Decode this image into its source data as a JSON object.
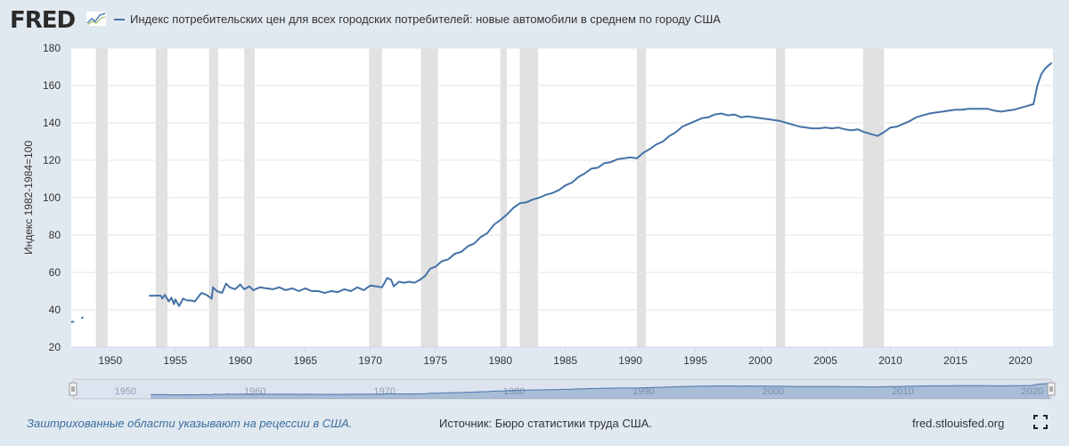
{
  "header": {
    "logo_text": "FRED",
    "legend_label": "Индекс потребительских цен для всех городских потребителей: новые автомобили в среднем по городу США",
    "line_color": "#4572a7"
  },
  "footer": {
    "recession_note": "Заштрихованные области указывают на рецессии в США.",
    "source": "Источник: Бюро статистики труда США.",
    "url": "fred.stlouisfed.org"
  },
  "navigator": {
    "tick_labels": [
      "1950",
      "1960",
      "1970",
      "1980",
      "1990",
      "2000",
      "2010",
      "2020"
    ]
  },
  "chart_data": {
    "type": "line",
    "title": "",
    "xlabel": "",
    "ylabel": "Индекс 1982-1984=100",
    "xlim": [
      1947.0,
      2022.5
    ],
    "ylim": [
      20,
      180
    ],
    "y_ticks": [
      20,
      40,
      60,
      80,
      100,
      120,
      140,
      160,
      180
    ],
    "x_ticks": [
      1950,
      1955,
      1960,
      1965,
      1970,
      1975,
      1980,
      1985,
      1990,
      1995,
      2000,
      2005,
      2010,
      2015,
      2020
    ],
    "grid": true,
    "recessions": [
      [
        1948.9,
        1949.8
      ],
      [
        1953.5,
        1954.4
      ],
      [
        1957.6,
        1958.3
      ],
      [
        1960.3,
        1961.1
      ],
      [
        1969.9,
        1970.9
      ],
      [
        1973.9,
        1975.2
      ],
      [
        1980.0,
        1980.5
      ],
      [
        1981.5,
        1982.9
      ],
      [
        1990.5,
        1991.2
      ],
      [
        2001.2,
        2001.9
      ],
      [
        2007.9,
        2009.5
      ]
    ],
    "series": [
      {
        "x": [
          1947.0,
          1947.2
        ],
        "y": [
          33.5,
          33.6
        ]
      },
      {
        "x": [
          1947.8,
          1947.9
        ],
        "y": [
          35.5,
          36.0
        ]
      },
      {
        "x": [
          1953.0,
          1953.3,
          1953.6,
          1953.9,
          1954.0,
          1954.2,
          1954.5,
          1954.7,
          1954.9,
          1955.0,
          1955.3,
          1955.6,
          1955.9,
          1956.2,
          1956.5,
          1957.0,
          1957.4,
          1957.8,
          1957.9,
          1958.2,
          1958.6,
          1958.9,
          1959.2,
          1959.6,
          1960.0,
          1960.3,
          1960.7,
          1961.0,
          1961.5,
          1962.0,
          1962.5,
          1963.0,
          1963.5,
          1964.0,
          1964.5,
          1965.0,
          1965.5,
          1966.0,
          1966.5,
          1967.0,
          1967.5,
          1968.0,
          1968.5,
          1969.0,
          1969.5,
          1970.0,
          1970.5,
          1970.9,
          1971.3,
          1971.6,
          1971.8,
          1972.2,
          1972.6,
          1973.0,
          1973.4,
          1973.8,
          1974.2,
          1974.6,
          1975.0,
          1975.5,
          1976.0,
          1976.5,
          1977.0,
          1977.5,
          1978.0,
          1978.5,
          1979.0,
          1979.5,
          1980.0,
          1980.5,
          1981.0,
          1981.5,
          1982.0,
          1982.5,
          1983.0,
          1983.5,
          1984.0,
          1984.5,
          1985.0,
          1985.5,
          1986.0,
          1986.5,
          1987.0,
          1987.5,
          1988.0,
          1988.5,
          1989.0,
          1989.5,
          1990.0,
          1990.5,
          1991.0,
          1991.5,
          1992.0,
          1992.5,
          1993.0,
          1993.5,
          1994.0,
          1994.5,
          1995.0,
          1995.5,
          1996.0,
          1996.5,
          1997.0,
          1997.5,
          1998.0,
          1998.5,
          1999.0,
          1999.5,
          2000.0,
          2000.5,
          2001.0,
          2001.5,
          2002.0,
          2002.5,
          2003.0,
          2003.5,
          2004.0,
          2004.5,
          2005.0,
          2005.5,
          2006.0,
          2006.5,
          2007.0,
          2007.5,
          2008.0,
          2008.5,
          2009.0,
          2009.5,
          2010.0,
          2010.5,
          2011.0,
          2011.5,
          2012.0,
          2012.5,
          2013.0,
          2013.5,
          2014.0,
          2014.5,
          2015.0,
          2015.5,
          2016.0,
          2016.5,
          2017.0,
          2017.5,
          2018.0,
          2018.5,
          2019.0,
          2019.5,
          2020.0,
          2020.5,
          2021.0,
          2021.3,
          2021.6,
          2021.9,
          2022.2,
          2022.4
        ],
        "y": [
          47.5,
          47.5,
          47.6,
          47.5,
          46.0,
          48.0,
          44.5,
          46.5,
          43.0,
          45.5,
          42.0,
          46.0,
          45.0,
          45.0,
          44.5,
          49.0,
          48.0,
          46.0,
          52.0,
          50.0,
          49.0,
          54.0,
          52.0,
          51.0,
          53.5,
          51.0,
          52.5,
          50.5,
          52.0,
          51.5,
          51.0,
          52.0,
          50.5,
          51.5,
          50.0,
          51.5,
          50.0,
          50.0,
          49.0,
          50.0,
          49.5,
          51.0,
          50.0,
          52.0,
          50.5,
          53.0,
          52.5,
          52.0,
          57.0,
          56.0,
          52.5,
          55.0,
          54.5,
          55.0,
          54.5,
          56.0,
          58.0,
          62.0,
          63.0,
          66.0,
          67.0,
          70.0,
          71.0,
          74.0,
          75.5,
          79.0,
          81.0,
          85.5,
          88.0,
          91.0,
          94.5,
          97.0,
          97.5,
          99.0,
          100.0,
          101.5,
          102.5,
          104.0,
          106.5,
          108.0,
          111.0,
          113.0,
          115.5,
          116.0,
          118.5,
          119.0,
          120.5,
          121.0,
          121.5,
          121.0,
          124.0,
          126.0,
          128.5,
          130.0,
          133.0,
          135.0,
          138.0,
          139.5,
          141.0,
          142.5,
          143.0,
          144.5,
          145.0,
          144.0,
          144.5,
          143.0,
          143.5,
          143.0,
          142.5,
          142.0,
          141.5,
          141.0,
          140.0,
          139.0,
          138.0,
          137.5,
          137.0,
          137.0,
          137.5,
          137.0,
          137.5,
          136.5,
          136.0,
          136.5,
          135.0,
          134.0,
          133.0,
          135.0,
          137.5,
          138.0,
          139.5,
          141.0,
          143.0,
          144.0,
          145.0,
          145.5,
          146.0,
          146.5,
          147.0,
          147.0,
          147.5,
          147.5,
          147.5,
          147.5,
          146.5,
          146.0,
          146.5,
          147.0,
          148.0,
          149.0,
          150.0,
          160.0,
          166.0,
          169.0,
          171.0,
          172.0
        ]
      }
    ]
  }
}
